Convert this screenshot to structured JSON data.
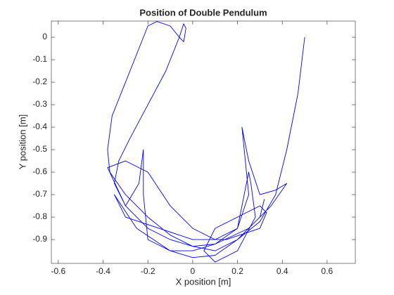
{
  "chart_data": {
    "type": "line",
    "title": "Position of Double Pendulum",
    "x_label": "X position [m]",
    "y_label": "Y position [m]",
    "xlim": [
      -0.631,
      0.726
    ],
    "ylim": [
      -1.006,
      0.072
    ],
    "xticks": [
      -0.6,
      -0.4,
      -0.2,
      0,
      0.2,
      0.4,
      0.6
    ],
    "yticks": [
      0,
      -0.1,
      -0.2,
      -0.3,
      -0.4,
      -0.5,
      -0.6,
      -0.7,
      -0.8,
      -0.9
    ],
    "grid": false,
    "series": [
      {
        "color": "#0000ff",
        "x": [
          0.5,
          0.47,
          0.42,
          0.37,
          0.3,
          0.2,
          0.1,
          0.0,
          -0.1,
          -0.2,
          -0.3,
          -0.37,
          -0.38,
          -0.36,
          -0.3,
          -0.24,
          -0.2,
          -0.16,
          -0.1,
          -0.06,
          -0.04,
          -0.03,
          -0.04,
          -0.06,
          -0.12,
          -0.2,
          -0.28,
          -0.33,
          -0.35,
          -0.3,
          -0.2,
          -0.1,
          0.0,
          0.1,
          0.2,
          0.25,
          0.23,
          0.22,
          0.25,
          0.3,
          0.37,
          0.42,
          0.35,
          0.25,
          0.1,
          0.0,
          -0.1,
          -0.2,
          -0.22,
          -0.22,
          -0.24,
          -0.3,
          -0.38,
          -0.3,
          -0.2,
          -0.1,
          0.0,
          0.1,
          0.2,
          0.25,
          0.26,
          0.28,
          0.2,
          0.1,
          0.05,
          0.1,
          0.2,
          0.3,
          0.33,
          0.3,
          0.15,
          0.0,
          -0.15,
          -0.3,
          -0.35,
          -0.25,
          -0.1,
          0.0,
          0.1,
          0.2,
          0.3,
          0.32
        ],
        "values": [
          0.0,
          -0.25,
          -0.5,
          -0.7,
          -0.82,
          -0.9,
          -0.95,
          -0.93,
          -0.88,
          -0.8,
          -0.7,
          -0.6,
          -0.5,
          -0.35,
          -0.2,
          -0.05,
          0.05,
          0.07,
          0.05,
          0.0,
          -0.02,
          0.04,
          0.06,
          0.0,
          -0.15,
          -0.3,
          -0.45,
          -0.55,
          -0.65,
          -0.75,
          -0.85,
          -0.9,
          -0.93,
          -0.92,
          -0.85,
          -0.7,
          -0.5,
          -0.4,
          -0.55,
          -0.7,
          -0.68,
          -0.65,
          -0.75,
          -0.85,
          -0.92,
          -0.95,
          -0.95,
          -0.9,
          -0.7,
          -0.5,
          -0.65,
          -0.75,
          -0.58,
          -0.55,
          -0.6,
          -0.75,
          -0.85,
          -0.9,
          -0.85,
          -0.6,
          -0.65,
          -0.8,
          -0.95,
          -1.0,
          -0.95,
          -0.85,
          -0.8,
          -0.75,
          -0.78,
          -0.85,
          -0.9,
          -0.9,
          -0.85,
          -0.8,
          -0.7,
          -0.85,
          -0.95,
          -0.98,
          -0.97,
          -0.9,
          -0.8,
          -0.72
        ]
      }
    ]
  }
}
